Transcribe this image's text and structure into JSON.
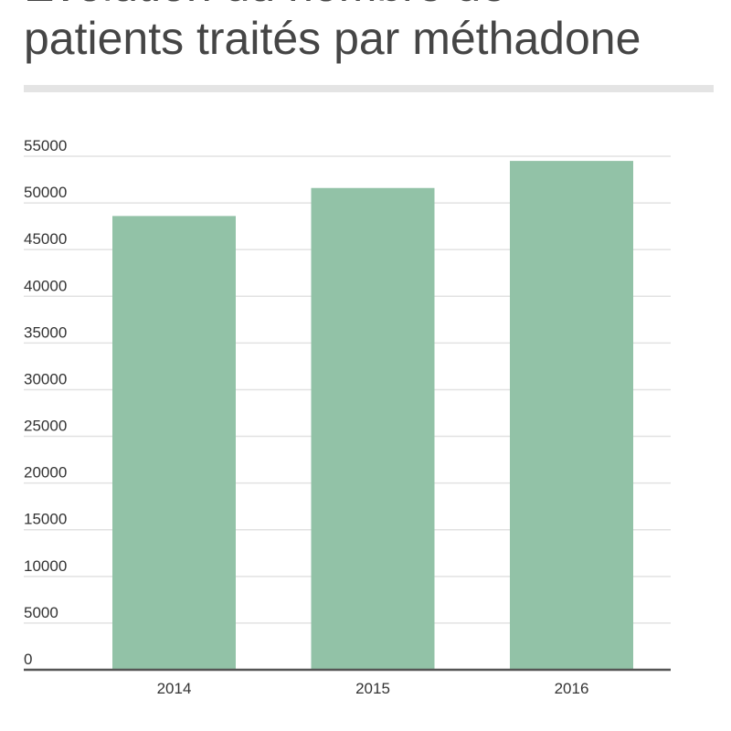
{
  "chart_data": {
    "type": "bar",
    "title": "Évolution du nombre de patients traités par méthadone",
    "title_lines": [
      "Évolution du nombre de",
      "patients traités par méthadone"
    ],
    "xlabel": "",
    "ylabel": "",
    "categories": [
      "2014",
      "2015",
      "2016"
    ],
    "values": [
      48600,
      51600,
      54500
    ],
    "ylim": [
      0,
      55000
    ],
    "yticks": [
      0,
      5000,
      10000,
      15000,
      20000,
      25000,
      30000,
      35000,
      40000,
      45000,
      50000,
      55000
    ],
    "grid": true,
    "legend": "none",
    "bar_color": "#92c2a7",
    "grid_color": "#e2e2e2",
    "axis_color": "#555555",
    "title_color": "#454545",
    "rule_color": "#e4e4e4"
  }
}
